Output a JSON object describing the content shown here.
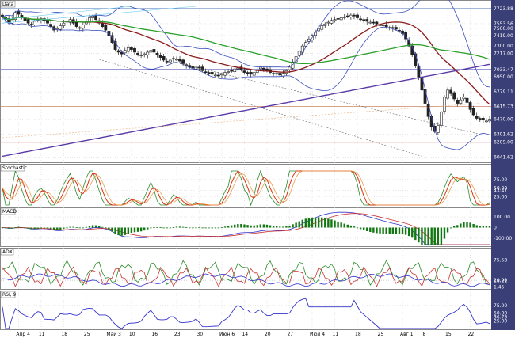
{
  "panels": {
    "price": {
      "title": "Data"
    },
    "stoch": {
      "title": "Stochastic"
    },
    "macd": {
      "title": "MACD"
    },
    "adx": {
      "title": "ADX"
    },
    "rsi": {
      "title": "RSI, 9"
    }
  },
  "chart_data": [
    {
      "type": "candlestick",
      "title": "Data",
      "ylim": [
        6000,
        7750
      ],
      "y_ticks": [
        7723.88,
        7553.56,
        7500.0,
        7419.0,
        7300.0,
        7217.0,
        7033.47,
        6950.0,
        6779.11,
        6615.73,
        6470.0,
        6301.62,
        6209.0,
        6041.62
      ],
      "y_tick_labels": [
        "7723.88",
        "7553.56",
        "7500.00",
        "7419.00",
        "7300.00",
        "7217.00",
        "7033.47",
        "6950.00",
        "6779.11",
        "6615.73",
        "6470.00",
        "6301.62",
        "6209.00",
        "6041.62"
      ],
      "highlighted_levels": [
        {
          "value": 7723.88,
          "color": "#4a6fb5"
        },
        {
          "value": 7033.47,
          "color": "#3333aa"
        },
        {
          "value": 6615.73,
          "color": "#cc8866"
        },
        {
          "value": 6209.0,
          "color": "#cc2222"
        }
      ],
      "x_labels": [
        "Апр 4",
        "11",
        "18",
        "25",
        "Май 3",
        "10",
        "16",
        "23",
        "30",
        "Июн 6",
        "14",
        "20",
        "27",
        "Июл 4",
        "11",
        "18",
        "25",
        "Авг 1",
        "8",
        "15",
        "22"
      ],
      "x_label_positions": [
        5,
        12,
        19,
        26,
        33,
        40,
        47,
        54,
        61,
        68,
        75,
        82,
        89,
        96,
        103,
        110,
        117,
        124,
        131,
        138,
        145
      ],
      "close": [
        7630,
        7600,
        7570,
        7600,
        7680,
        7660,
        7620,
        7590,
        7560,
        7540,
        7580,
        7600,
        7610,
        7590,
        7560,
        7520,
        7480,
        7500,
        7530,
        7560,
        7580,
        7600,
        7560,
        7520,
        7500,
        7540,
        7580,
        7620,
        7640,
        7600,
        7560,
        7520,
        7480,
        7420,
        7340,
        7260,
        7230,
        7210,
        7250,
        7280,
        7260,
        7230,
        7200,
        7190,
        7210,
        7230,
        7250,
        7230,
        7200,
        7170,
        7140,
        7120,
        7140,
        7160,
        7150,
        7130,
        7100,
        7080,
        7060,
        7050,
        7060,
        7050,
        7020,
        7000,
        6990,
        6980,
        6970,
        6960,
        6980,
        7000,
        7010,
        7020,
        7040,
        7050,
        7030,
        7000,
        6990,
        6980,
        7000,
        7030,
        7060,
        7040,
        7020,
        7000,
        6990,
        6980,
        6970,
        6990,
        7020,
        7060,
        7120,
        7180,
        7240,
        7300,
        7340,
        7380,
        7420,
        7460,
        7500,
        7530,
        7550,
        7570,
        7590,
        7600,
        7610,
        7620,
        7630,
        7640,
        7650,
        7640,
        7620,
        7600,
        7590,
        7580,
        7570,
        7560,
        7550,
        7540,
        7530,
        7520,
        7510,
        7500,
        7490,
        7470,
        7440,
        7380,
        7300,
        7200,
        7080,
        6950,
        6800,
        6650,
        6500,
        6380,
        6330,
        6400,
        6550,
        6720,
        6800,
        6760,
        6700,
        6650,
        6690,
        6720,
        6660,
        6580,
        6520,
        6480,
        6470,
        6460,
        6450,
        6470
      ]
    },
    {
      "type": "line",
      "title": "Stochastic",
      "ylim": [
        0,
        100
      ],
      "y_ticks": [
        75.0,
        50.0,
        43.47,
        25.0
      ],
      "y_tick_labels": [
        "75.00",
        "50.00",
        "43.47",
        "25.00"
      ]
    },
    {
      "type": "bar",
      "title": "MACD",
      "ylim": [
        -160,
        160
      ],
      "y_ticks": [
        100.0,
        0,
        -100.0
      ],
      "y_tick_labels": [
        "100.00",
        "0",
        "-100.00"
      ]
    },
    {
      "type": "line",
      "title": "ADX",
      "ylim": [
        0,
        90
      ],
      "y_ticks": [
        75.58,
        20.0,
        18.21,
        1.45
      ],
      "y_tick_labels": [
        "75.58",
        "20.00",
        "18.21",
        "1.45"
      ]
    },
    {
      "type": "line",
      "title": "RSI, 9",
      "ylim": [
        0,
        100
      ],
      "y_ticks": [
        75.0,
        50.0,
        36.73,
        25.0
      ],
      "y_tick_labels": [
        "75.00",
        "50.00",
        "36.73",
        "25.00"
      ]
    }
  ],
  "colors": {
    "axis_bg": "#3a3f78",
    "price_line": "#5a3aa6",
    "ma_red": "#8b1a1a",
    "ma_green": "#2aa02a",
    "bollinger": "#3a4fbf",
    "stoch_k": "#2a8a2a",
    "stoch_d": "#dd3311",
    "macd_hist": "#117711"
  }
}
